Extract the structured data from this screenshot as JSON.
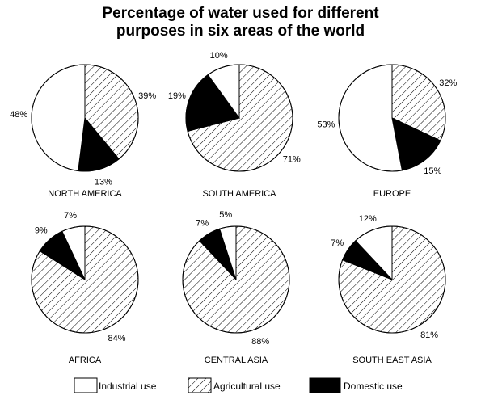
{
  "chart_data": {
    "type": "pie",
    "title": "Percentage of water used for different purposes in six areas of the world",
    "title_lines": [
      "Percentage of water used for different",
      "purposes in six areas of the world"
    ],
    "categories": [
      "Industrial use",
      "Agricultural use",
      "Domestic use"
    ],
    "series": [
      {
        "name": "NORTH AMERICA",
        "values": [
          48,
          39,
          13
        ]
      },
      {
        "name": "SOUTH AMERICA",
        "values": [
          10,
          71,
          19
        ]
      },
      {
        "name": "EUROPE",
        "values": [
          53,
          32,
          15
        ]
      },
      {
        "name": "AFRICA",
        "values": [
          7,
          84,
          9
        ]
      },
      {
        "name": "CENTRAL ASIA",
        "values": [
          5,
          88,
          7
        ]
      },
      {
        "name": "SOUTH EAST ASIA",
        "values": [
          12,
          81,
          7
        ]
      }
    ],
    "legend": {
      "placement": "bottom",
      "items": [
        {
          "label": "Industrial use",
          "fill": "white"
        },
        {
          "label": "Agricultural use",
          "fill": "hatched"
        },
        {
          "label": "Domestic use",
          "fill": "black"
        }
      ]
    },
    "colors": {
      "industrial": "#ffffff",
      "agricultural_hatch": "#000000",
      "domestic": "#000000",
      "outline": "#000000"
    }
  }
}
